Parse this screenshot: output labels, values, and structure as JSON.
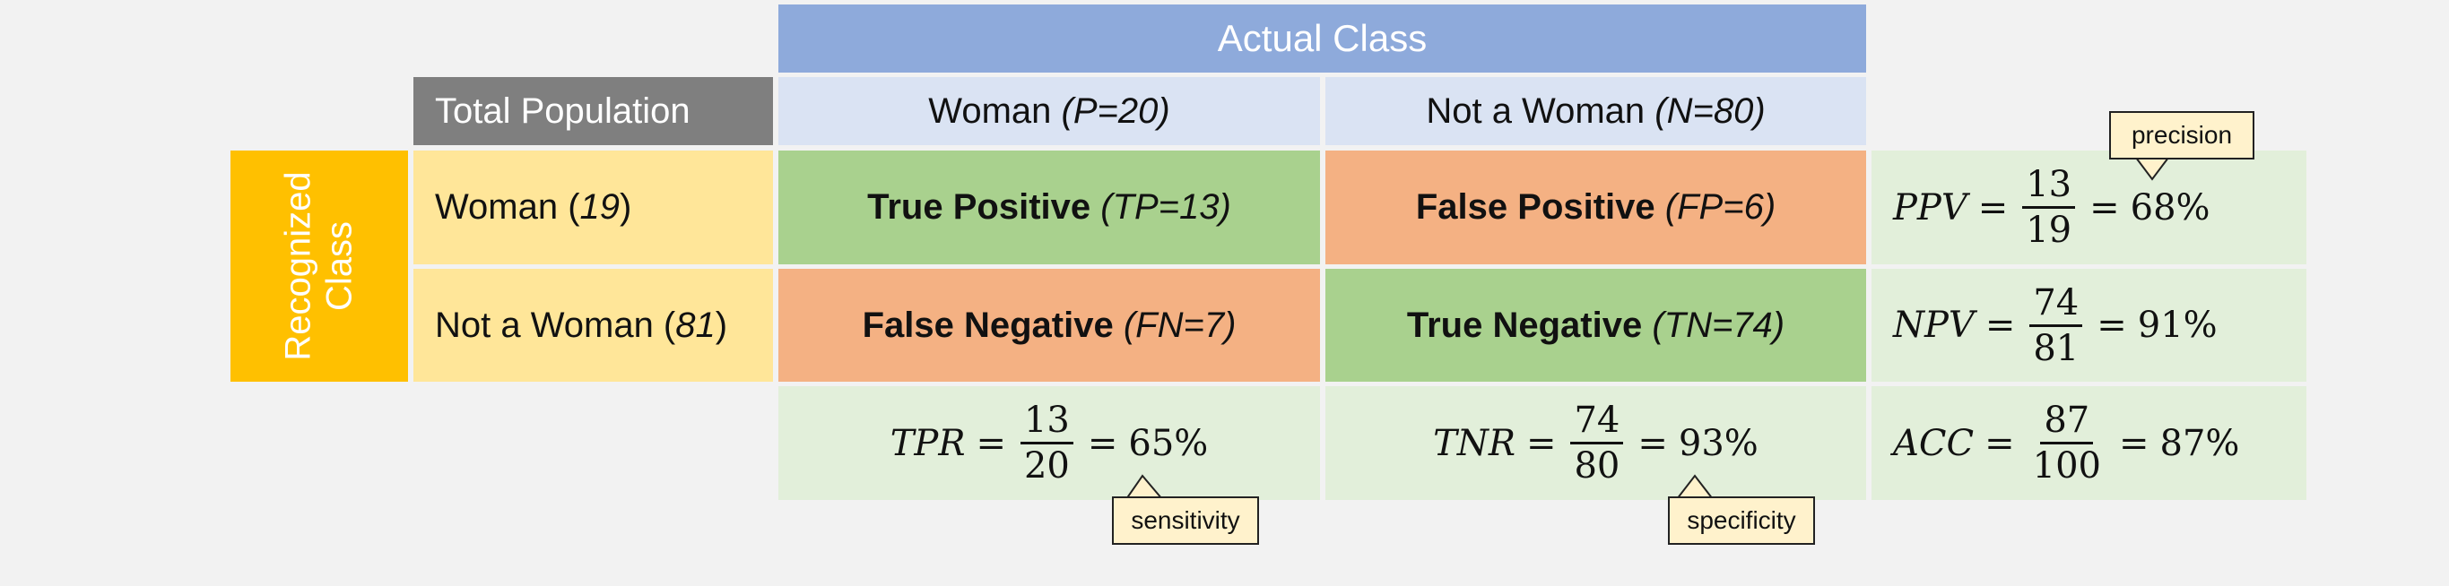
{
  "header": {
    "actual_class": "Actual Class",
    "total_population": "Total Population",
    "recognized_class": "Recognized Class"
  },
  "columns": {
    "woman": {
      "label": "Woman",
      "count": "(P=20)"
    },
    "not_woman": {
      "label": "Not a Woman",
      "count": "(N=80)"
    }
  },
  "rows": {
    "woman": {
      "label": "Woman",
      "count": "19"
    },
    "not_woman": {
      "label": "Not a Woman",
      "count": "81"
    }
  },
  "cells": {
    "tp": {
      "label": "True Positive",
      "value": "(TP=13)"
    },
    "fp": {
      "label": "False Positive",
      "value": "(FP=6)"
    },
    "fn": {
      "label": "False Negative",
      "value": "(FN=7)"
    },
    "tn": {
      "label": "True Negative",
      "value": "(TN=74)"
    }
  },
  "metrics": {
    "ppv": {
      "name": "PPV",
      "num": "13",
      "den": "19",
      "result": "68%"
    },
    "npv": {
      "name": "NPV",
      "num": "74",
      "den": "81",
      "result": "91%"
    },
    "tpr": {
      "name": "TPR",
      "num": "13",
      "den": "20",
      "result": "65%"
    },
    "tnr": {
      "name": "TNR",
      "num": "74",
      "den": "80",
      "result": "93%"
    },
    "acc": {
      "name": "ACC",
      "num": "87",
      "den": "100",
      "result": "87%"
    }
  },
  "callouts": {
    "precision": "precision",
    "sensitivity": "sensitivity",
    "specificity": "specificity"
  },
  "colors": {
    "actual_header": "#8eaadb",
    "column_header": "#dae3f3",
    "total_population": "#7f7f7f",
    "recognized": "#ffc000",
    "row_header": "#ffe699",
    "true_cell": "#a9d18e",
    "false_cell": "#f4b183",
    "metric_cell": "#e2efda",
    "callout": "#fff2cc"
  }
}
